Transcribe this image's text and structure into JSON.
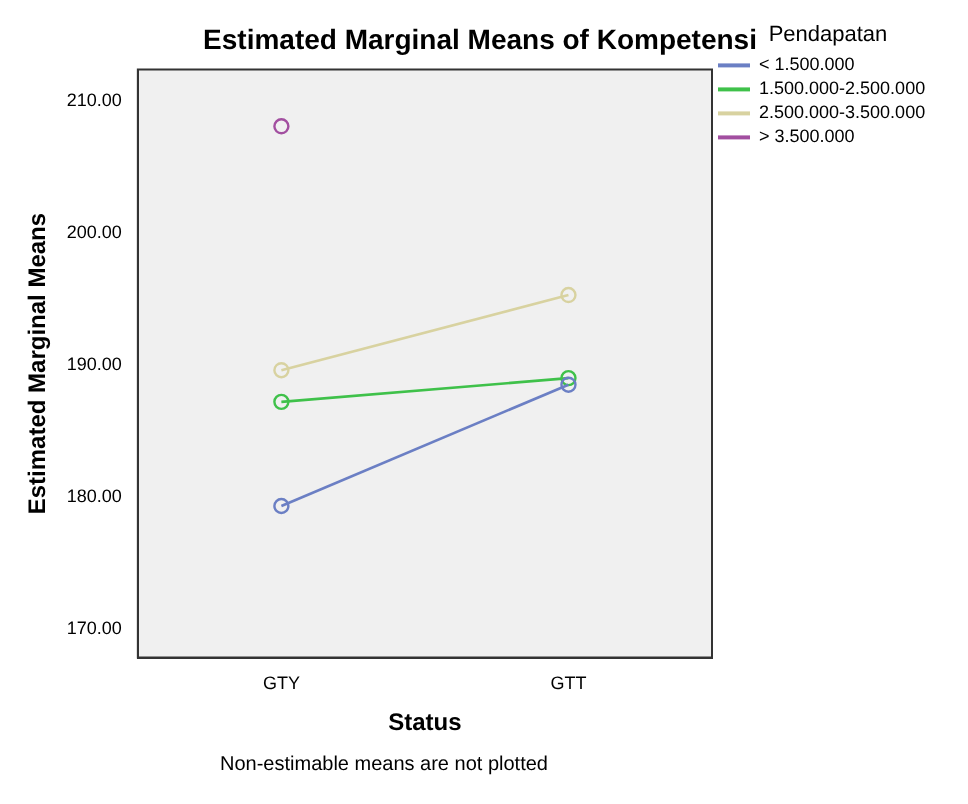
{
  "chart_data": {
    "type": "line",
    "title": "Estimated Marginal Means of Kompetensi",
    "xlabel": "Status",
    "ylabel": "Estimated Marginal Means",
    "legend_title": "Pendapatan",
    "categories": [
      "GTY",
      "GTT"
    ],
    "series": [
      {
        "name": "< 1.500.000",
        "color": "#6b7fc4",
        "values": [
          179.3,
          188.5
        ]
      },
      {
        "name": "1.500.000-2.500.000",
        "color": "#3fc14a",
        "values": [
          187.2,
          189.0
        ]
      },
      {
        "name": "2.500.000-3.500.000",
        "color": "#d8d2a0",
        "values": [
          189.6,
          195.3
        ]
      },
      {
        "name": "> 3.500.000",
        "color": "#a24fa0",
        "values": [
          208.1,
          null
        ]
      }
    ],
    "ylim": [
      167.8,
      212.4
    ],
    "yticks": [
      {
        "value": 170,
        "label": "170.00"
      },
      {
        "value": 180,
        "label": "180.00"
      },
      {
        "value": 190,
        "label": "190.00"
      },
      {
        "value": 200,
        "label": "200.00"
      },
      {
        "value": 210,
        "label": "210.00"
      }
    ],
    "grid": false,
    "legend": "top right",
    "marker": "circle",
    "line_style": "solid",
    "annotations": [
      "Non-estimable means are not plotted"
    ]
  }
}
